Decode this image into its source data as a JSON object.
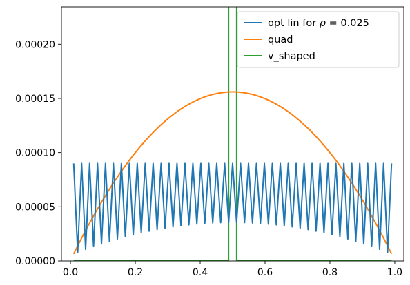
{
  "chart_data": {
    "type": "line",
    "xlim": [
      -0.0278,
      1.0278
    ],
    "ylim": [
      0,
      0.0002345
    ],
    "xticks": [
      0.0,
      0.2,
      0.4,
      0.6,
      0.8,
      1.0
    ],
    "xtick_labels": [
      "0.0",
      "0.2",
      "0.4",
      "0.6",
      "0.8",
      "1.0"
    ],
    "yticks": [
      0.0,
      5e-05,
      0.0001,
      0.00015,
      0.0002
    ],
    "ytick_labels": [
      "0.00000",
      "0.00005",
      "0.00010",
      "0.00015",
      "0.00020"
    ],
    "grid": false,
    "legend_placement": "upper right",
    "series": [
      {
        "name": "opt lin for ρ = 0.025",
        "legend_prefix": "opt lin for ",
        "legend_symbol": "ρ",
        "legend_suffix": " = 0.025",
        "color": "#1f77b4",
        "kind": "sawtooth",
        "x_start": 0.01,
        "x_end": 0.99,
        "teeth": 40,
        "peak": 9e-05,
        "trough_at_edge": 6.5e-06,
        "trough_at_center": 3.55e-05
      },
      {
        "name": "quad",
        "color": "#ff7f0e",
        "kind": "parabola",
        "x_start": 0.01,
        "x_end": 0.99,
        "y_at_ends": 6.5e-06,
        "y_at_center": 0.000156
      },
      {
        "name": "v_shaped",
        "color": "#2ca02c",
        "kind": "v",
        "vertical_lines_x": [
          0.4875,
          0.5125
        ],
        "y_outside": 0.0,
        "y_inside": 0.0003
      }
    ]
  }
}
